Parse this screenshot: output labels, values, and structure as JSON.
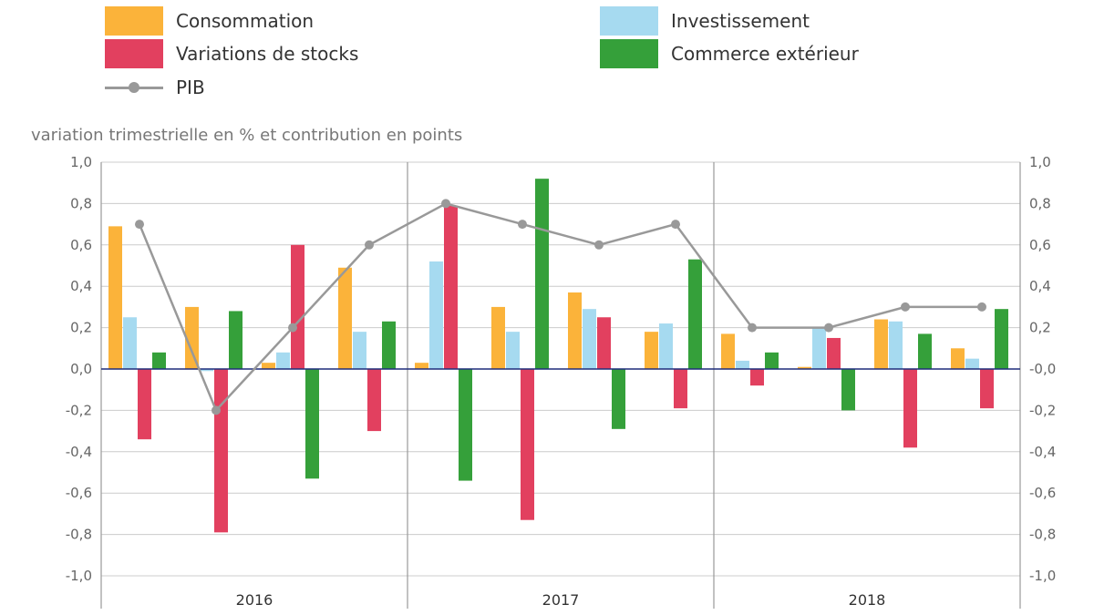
{
  "legend": {
    "consommation": "Consommation",
    "investissement": "Investissement",
    "variations": "Variations de stocks",
    "commerce": "Commerce extérieur",
    "pib": "PIB"
  },
  "unit_label": "variation trimestrielle en % et contribution en points",
  "colors": {
    "consommation": "#FBB33A",
    "investissement": "#A6DAF0",
    "variations": "#E2405F",
    "commerce": "#35A03A",
    "pib": "#999999",
    "zero_line": "#1F2D7A",
    "grid": "#CCCCCC"
  },
  "chart_data": {
    "type": "bar",
    "title": "",
    "ylabel": "variation trimestrielle en % et contribution en points",
    "xlabel": "",
    "ylim": [
      -1.0,
      1.0
    ],
    "yticks": [
      "1,0",
      "0,8",
      "0,6",
      "0,4",
      "0,2",
      "0,0",
      "-0,2",
      "-0,4",
      "-0,6",
      "-0,8",
      "-1,0"
    ],
    "yticks_right": [
      "1,0",
      "0,8",
      "0,6",
      "0,4",
      "0,2",
      "-0,0",
      "-0,2",
      "-0,4",
      "-0,6",
      "-0,8",
      "-1,0"
    ],
    "years": [
      "2016",
      "2017",
      "2018"
    ],
    "quarters_per_year": 4,
    "grid": true,
    "legend_position": "top",
    "series": [
      {
        "name": "Consommation",
        "type": "bar",
        "values": [
          0.69,
          0.3,
          0.03,
          0.49,
          0.03,
          0.3,
          0.37,
          0.18,
          0.17,
          0.01,
          0.24,
          0.1
        ]
      },
      {
        "name": "Investissement",
        "type": "bar",
        "values": [
          0.25,
          -0.01,
          0.08,
          0.18,
          0.52,
          0.18,
          0.29,
          0.22,
          0.04,
          0.2,
          0.23,
          0.05
        ]
      },
      {
        "name": "Variations de stocks",
        "type": "bar",
        "values": [
          -0.34,
          -0.79,
          0.6,
          -0.3,
          0.79,
          -0.73,
          0.25,
          -0.19,
          -0.08,
          0.15,
          -0.38,
          -0.19
        ]
      },
      {
        "name": "Commerce extérieur",
        "type": "bar",
        "values": [
          0.08,
          0.28,
          -0.53,
          0.23,
          -0.54,
          0.92,
          -0.29,
          0.53,
          0.08,
          -0.2,
          0.17,
          0.29
        ]
      },
      {
        "name": "PIB",
        "type": "line",
        "values": [
          0.7,
          -0.2,
          0.2,
          0.6,
          0.8,
          0.7,
          0.6,
          0.7,
          0.2,
          0.2,
          0.3,
          0.3
        ]
      }
    ]
  }
}
